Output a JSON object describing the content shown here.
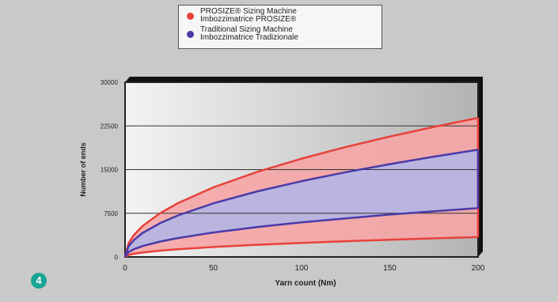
{
  "badge": {
    "number": "4"
  },
  "chart_data": {
    "type": "area",
    "xlabel": "Yarn count (Nm)",
    "ylabel": "Number of ends",
    "xlim": [
      0,
      200
    ],
    "ylim": [
      0,
      30000
    ],
    "x_ticks": [
      "0",
      "50",
      "100",
      "150",
      "200"
    ],
    "y_ticks": [
      "0",
      "7500",
      "15000",
      "22500",
      "30000"
    ],
    "grid": "horizontal",
    "legend": "top-center",
    "x": [
      0,
      2,
      5,
      10,
      20,
      30,
      50,
      75,
      100,
      125,
      150,
      175,
      200
    ],
    "series": [
      {
        "name": "PROSIZE® Sizing Machine",
        "name_alt": "Imbozzimatrice PROSIZE®",
        "color": "#e8413a",
        "band_color": "#f5a5a5",
        "upper": [
          0,
          2390,
          3780,
          5340,
          7550,
          9250,
          11940,
          14620,
          16880,
          18880,
          20680,
          22330,
          23880
        ],
        "lower": [
          0,
          340,
          540,
          760,
          1080,
          1320,
          1710,
          2090,
          2410,
          2700,
          2950,
          3190,
          3410
        ]
      },
      {
        "name": "Traditional Sizing Machine",
        "name_alt": "Imbozzimatrice Tradizionale",
        "color": "#4a3aa8",
        "band_color": "#b4b6e6",
        "upper": [
          0,
          1840,
          2910,
          4120,
          5820,
          7130,
          9210,
          11270,
          13010,
          14550,
          15940,
          17220,
          18410
        ],
        "lower": [
          0,
          840,
          1330,
          1880,
          2650,
          3250,
          4200,
          5140,
          5930,
          6630,
          7270,
          7850,
          8390
        ]
      }
    ]
  }
}
